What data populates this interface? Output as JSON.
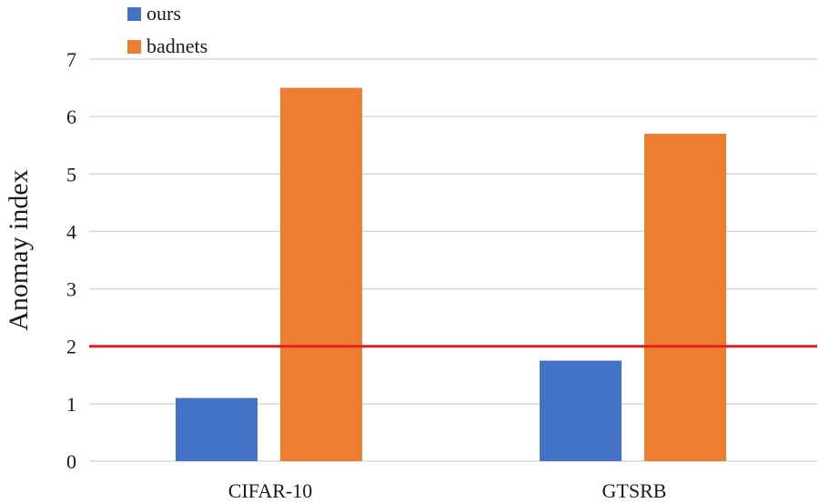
{
  "chart_data": {
    "type": "bar",
    "categories": [
      "CIFAR-10",
      "GTSRB"
    ],
    "series": [
      {
        "name": "ours",
        "values": [
          1.1,
          1.75
        ],
        "color": "#4472c4"
      },
      {
        "name": "badnets",
        "values": [
          6.5,
          5.7
        ],
        "color": "#ed7d31"
      }
    ],
    "ylabel": "Anomay index",
    "xlabel": "",
    "title": "",
    "ylim": [
      0,
      7
    ],
    "yticks": [
      0,
      1,
      2,
      3,
      4,
      5,
      6,
      7
    ],
    "grid": true,
    "gridline_color": "#d9d9d9",
    "threshold": {
      "value": 2,
      "color": "#e02020"
    },
    "legend_position": "top-left"
  }
}
